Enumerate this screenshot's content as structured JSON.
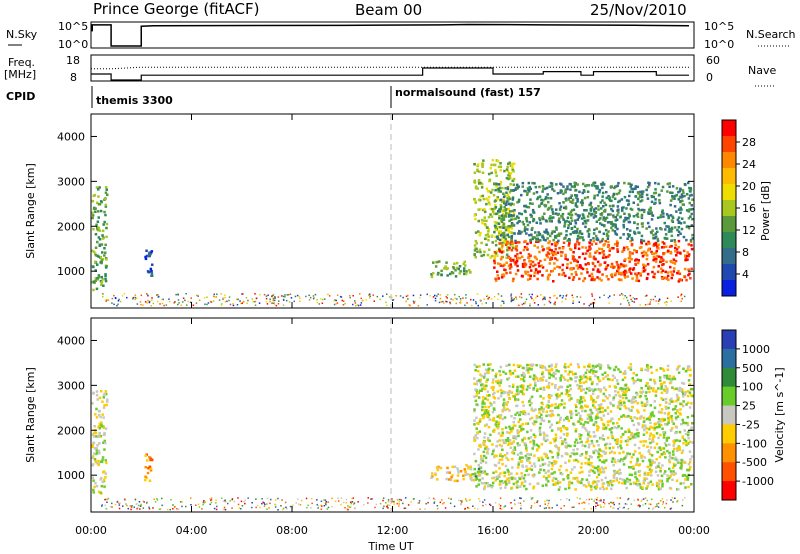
{
  "header": {
    "station": "Prince George (fitACF)",
    "beam": "Beam 00",
    "date": "25/Nov/2010"
  },
  "aux_labels": {
    "nsky": "N.Sky",
    "nsearch": "N.Search",
    "freq": "Freq.",
    "mhz": "[MHz]",
    "nave": "Nave",
    "cpid": "CPID",
    "exp1": "themis 3300",
    "exp2": "normalsound (fast) 157"
  },
  "aux_ticks": {
    "noise_left": [
      "10^5",
      "10^0"
    ],
    "noise_right": [
      "10^5",
      "10^0"
    ],
    "freq_left": [
      "18",
      "8"
    ],
    "nave_right": [
      "60",
      "0"
    ]
  },
  "x_ticks": [
    "00:00",
    "04:00",
    "08:00",
    "12:00",
    "16:00",
    "20:00",
    "00:00"
  ],
  "x_label": "Time UT",
  "y_label": "Slant Range [km]",
  "y_ticks": [
    "1000",
    "2000",
    "3000",
    "4000"
  ],
  "power_colorbar": {
    "label": "Power [dB]",
    "ticks": [
      "28",
      "24",
      "20",
      "16",
      "12",
      "8",
      "4"
    ],
    "colors": [
      "#ff0000",
      "#ff4400",
      "#ff8800",
      "#ffbb00",
      "#eedd00",
      "#a8c820",
      "#5a9a3a",
      "#2f8a5a",
      "#336d8a",
      "#1f49b0",
      "#0a20e0"
    ]
  },
  "velocity_colorbar": {
    "label": "Velocity [m s^-1]",
    "ticks": [
      "1000",
      "500",
      "100",
      "25",
      "-25",
      "-100",
      "-500",
      "-1000"
    ],
    "colors": [
      "#2a3fb4",
      "#2a6fa0",
      "#2f8a3a",
      "#6acc2a",
      "#c8c8c0",
      "#ffcc00",
      "#ff9000",
      "#ff5000",
      "#ff0000"
    ]
  },
  "chart_data": [
    {
      "type": "line",
      "title": "N.Sky / N.Search",
      "x_range_hours": [
        0,
        24
      ],
      "ylim_log10": [
        0,
        5
      ],
      "series": [
        {
          "name": "N.Sky",
          "x": [
            0,
            0.05,
            0.05,
            0.8,
            0.8,
            2,
            2,
            2.5,
            10,
            14,
            15,
            18,
            22,
            23.8
          ],
          "y": [
            3.5,
            3.5,
            4.8,
            4.8,
            0,
            0,
            4.5,
            4.6,
            4.7,
            4.8,
            4.9,
            4.8,
            4.7,
            4.6
          ]
        }
      ]
    },
    {
      "type": "line",
      "title": "Freq / Nave",
      "x_range_hours": [
        0,
        24
      ],
      "freq_ylim": [
        8,
        18
      ],
      "nave_ylim": [
        0,
        60
      ],
      "series": [
        {
          "name": "Freq.",
          "x": [
            0,
            0.8,
            0.8,
            2,
            2,
            12,
            13.2,
            13.2,
            16,
            16,
            18,
            18,
            19.5,
            19.5,
            20,
            20,
            22.5,
            22.5,
            23.8
          ],
          "y": [
            10.5,
            10.5,
            0,
            0,
            10,
            10,
            10,
            13,
            13,
            10.5,
            10.5,
            11.5,
            11.5,
            10,
            10,
            11.5,
            11.5,
            10,
            10
          ]
        },
        {
          "name": "Nave",
          "x": [
            0,
            0.8,
            2,
            23.8
          ],
          "y": [
            28,
            28,
            32,
            32
          ]
        }
      ]
    },
    {
      "type": "heatmap",
      "title": "Power [dB]",
      "xlabel": "Time UT",
      "ylabel": "Slant Range [km]",
      "xlim_hours": [
        0,
        24
      ],
      "ylim_km": [
        180,
        4500
      ],
      "blobs": [
        {
          "t0": 0.0,
          "t1": 0.6,
          "r0": 600,
          "r1": 2900,
          "level": 6
        },
        {
          "t0": 2.1,
          "t1": 2.4,
          "r0": 900,
          "r1": 1500,
          "level": 9
        },
        {
          "t0": 13.5,
          "t1": 15.1,
          "r0": 900,
          "r1": 1250,
          "level": 6
        },
        {
          "t0": 15.2,
          "t1": 16.8,
          "r0": 1300,
          "r1": 3500,
          "level": 5
        },
        {
          "t0": 16.0,
          "t1": 23.9,
          "r0": 800,
          "r1": 1700,
          "level": 1
        },
        {
          "t0": 16.0,
          "t1": 23.9,
          "r0": 1700,
          "r1": 3000,
          "level": 7
        }
      ]
    },
    {
      "type": "heatmap",
      "title": "Velocity [m s^-1]",
      "xlabel": "Time UT",
      "ylabel": "Slant Range [km]",
      "xlim_hours": [
        0,
        24
      ],
      "ylim_km": [
        180,
        4500
      ],
      "blobs": [
        {
          "t0": 0.0,
          "t1": 0.6,
          "r0": 600,
          "r1": 2900,
          "level": 4
        },
        {
          "t0": 2.1,
          "t1": 2.4,
          "r0": 900,
          "r1": 1500,
          "level": 6
        },
        {
          "t0": 13.5,
          "t1": 15.1,
          "r0": 900,
          "r1": 1250,
          "level": 5
        },
        {
          "t0": 15.1,
          "t1": 15.5,
          "r0": 900,
          "r1": 1250,
          "level": 3
        },
        {
          "t0": 15.2,
          "t1": 23.9,
          "r0": 700,
          "r1": 3500,
          "level": 4
        }
      ]
    }
  ]
}
